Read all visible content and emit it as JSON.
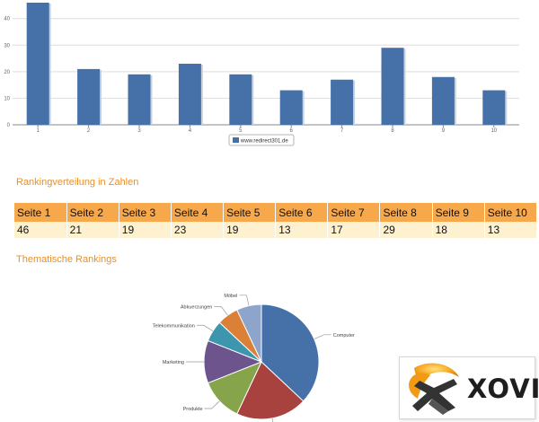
{
  "chart_data": [
    {
      "type": "bar",
      "categories": [
        "1",
        "2",
        "3",
        "4",
        "5",
        "6",
        "7",
        "8",
        "9",
        "10"
      ],
      "series": [
        {
          "name": "www.redirect301.de",
          "values": [
            46,
            21,
            19,
            23,
            19,
            13,
            17,
            29,
            18,
            13
          ]
        }
      ],
      "yticks": [
        0,
        10,
        20,
        30,
        40
      ],
      "ylim": [
        0,
        47
      ],
      "grid": true,
      "legend": "bottom-center",
      "colors": {
        "bar": "#4571a8",
        "shadow": "#c9d3e0",
        "grid": "#dddddd",
        "axis": "#8a8a8a"
      }
    },
    {
      "type": "pie",
      "labels": [
        "Computer",
        "",
        "Produkte",
        "Marketing",
        "Telekommunikation",
        "Abkuerzungen",
        "Möbel"
      ],
      "values": [
        37,
        20,
        12,
        12,
        6,
        6,
        7
      ],
      "colors": [
        "#4571a8",
        "#a8423f",
        "#86a44a",
        "#6e548d",
        "#3d96ae",
        "#da8137",
        "#8ea5cb"
      ]
    }
  ],
  "sections": {
    "distribution_title": "Rankingverteilung in Zahlen",
    "topic_title": "Thematische Rankings"
  },
  "table": {
    "headers": [
      "Seite 1",
      "Seite 2",
      "Seite 3",
      "Seite 4",
      "Seite 5",
      "Seite 6",
      "Seite 7",
      "Seite 8",
      "Seite 9",
      "Seite 10"
    ],
    "values": [
      "46",
      "21",
      "19",
      "23",
      "19",
      "13",
      "17",
      "29",
      "18",
      "13"
    ]
  },
  "logo": {
    "text": "XOVI"
  }
}
